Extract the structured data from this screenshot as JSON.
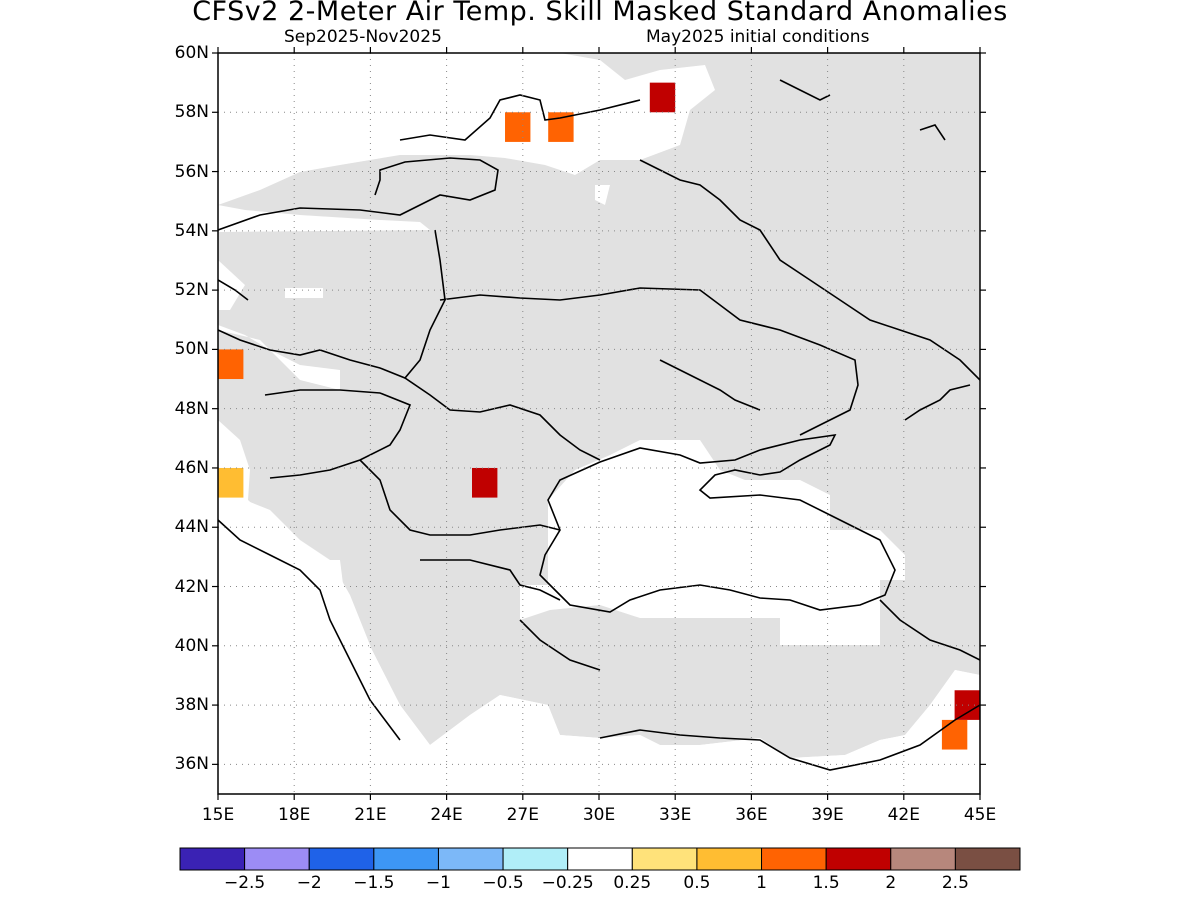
{
  "header": {
    "title": "CFSv2 2-Meter Air Temp. Skill Masked Standard Anomalies",
    "period": "Sep2025-Nov2025",
    "init": "May2025 initial conditions"
  },
  "map": {
    "lon_range": [
      15,
      45
    ],
    "lat_range": [
      35,
      60
    ],
    "lat_ticks": [
      "60N",
      "58N",
      "56N",
      "54N",
      "52N",
      "50N",
      "48N",
      "46N",
      "44N",
      "42N",
      "40N",
      "38N",
      "36N"
    ],
    "lon_ticks": [
      "15E",
      "18E",
      "21E",
      "24E",
      "27E",
      "30E",
      "33E",
      "36E",
      "39E",
      "42E",
      "45E"
    ],
    "masked_color": "#e1e1e1",
    "anomaly_cells": [
      {
        "lon": 26.8,
        "lat": 57.5,
        "value": 1.2
      },
      {
        "lon": 28.5,
        "lat": 57.5,
        "value": 1.2
      },
      {
        "lon": 32.5,
        "lat": 58.5,
        "value": 1.7
      },
      {
        "lon": 15.5,
        "lat": 49.5,
        "value": 1.2
      },
      {
        "lon": 15.5,
        "lat": 45.5,
        "value": 0.9
      },
      {
        "lon": 25.5,
        "lat": 45.5,
        "value": 1.8
      },
      {
        "lon": 44.0,
        "lat": 37.0,
        "value": 1.3
      },
      {
        "lon": 44.5,
        "lat": 38.0,
        "value": 1.8
      }
    ]
  },
  "colorbar": {
    "colors": [
      "#3a22b4",
      "#9c8cf5",
      "#1f62e8",
      "#3d96f5",
      "#7cb8f8",
      "#b0eef8",
      "#ffffff",
      "#ffe27a",
      "#ffbd32",
      "#ff6302",
      "#c00000",
      "#b7877c",
      "#7a4f43"
    ],
    "labels": [
      "-2.5",
      "-2",
      "-1.5",
      "-1",
      "-0.5",
      "-0.25",
      "0.25",
      "0.5",
      "1",
      "1.5",
      "2",
      "2.5"
    ]
  }
}
